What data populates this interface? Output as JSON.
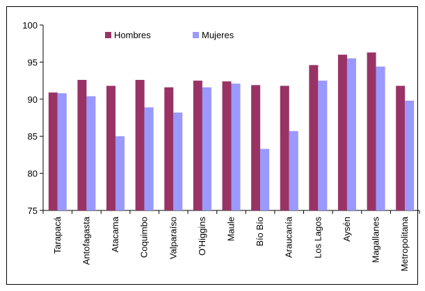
{
  "chart_data": {
    "type": "bar",
    "categories": [
      "Tarapacá",
      "Antofagasta",
      "Atacama",
      "Coquimbo",
      "Valparaíso",
      "O'Higgins",
      "Maule",
      "Bío Bío",
      "Araucanía",
      "Los Lagos",
      "Aysén",
      "Magallanes",
      "Metropolitana"
    ],
    "series": [
      {
        "name": "Hombres",
        "color": "#993366",
        "values": [
          90.9,
          92.6,
          91.8,
          92.6,
          91.6,
          92.5,
          92.4,
          91.9,
          91.8,
          94.6,
          96.0,
          96.3,
          91.8
        ]
      },
      {
        "name": "Mujeres",
        "color": "#9999ff",
        "values": [
          90.8,
          90.4,
          85.0,
          88.9,
          88.2,
          91.6,
          92.1,
          83.3,
          85.7,
          92.5,
          95.5,
          94.4,
          89.8
        ]
      }
    ],
    "ylim": [
      75,
      100
    ],
    "yticks": [
      75,
      80,
      85,
      90,
      95,
      100
    ],
    "legend": "top-left",
    "grid": false
  }
}
